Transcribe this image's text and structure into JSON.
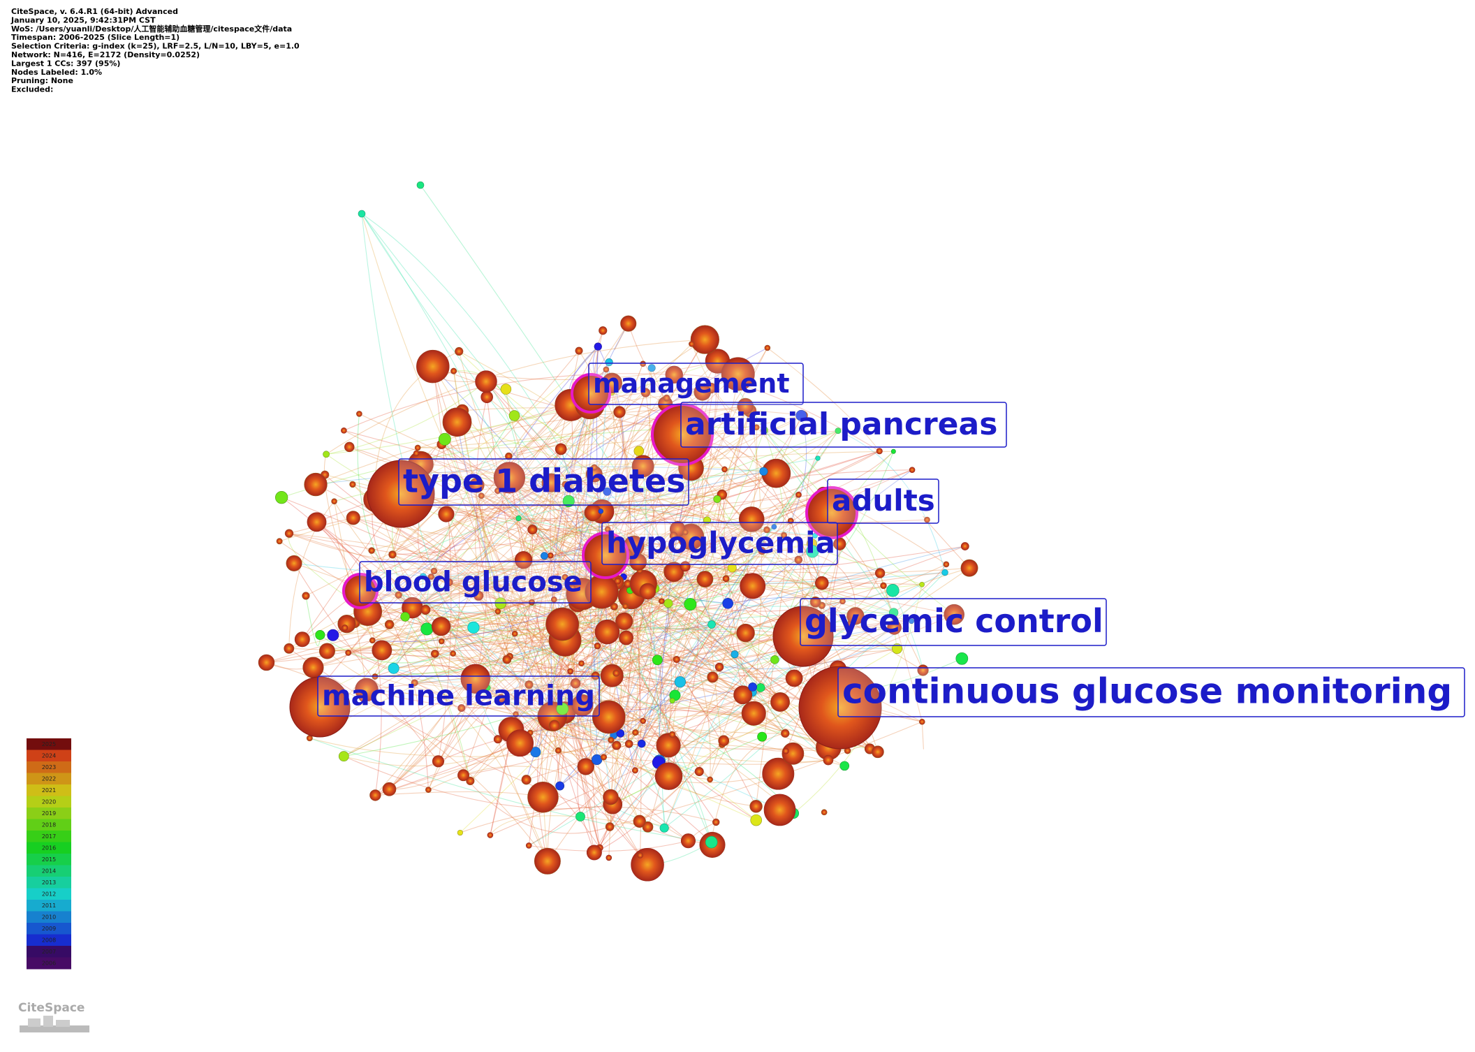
{
  "header": {
    "lines": [
      "CiteSpace, v. 6.4.R1 (64-bit) Advanced",
      "January 10, 2025, 9:42:31PM CST",
      "WoS: /Users/yuanli/Desktop/人工智能辅助血糖管理/citespace文件/data",
      "Timespan: 2006-2025 (Slice Length=1)",
      "Selection Criteria: g-index (k=25), LRF=2.5, L/N=10, LBY=5, e=1.0",
      "Network: N=416, E=2172 (Density=0.0252)",
      "Largest 1 CCs: 397 (95%)",
      "Nodes Labeled: 1.0%",
      "Pruning: None",
      "Excluded:"
    ]
  },
  "nodes": [
    {
      "label": "management"
    },
    {
      "label": "artificial pancreas"
    },
    {
      "label": "type 1 diabetes"
    },
    {
      "label": "adults"
    },
    {
      "label": "hypoglycemia"
    },
    {
      "label": "blood glucose"
    },
    {
      "label": "glycemic control"
    },
    {
      "label": "machine learning"
    },
    {
      "label": "continuous glucose monitoring"
    }
  ],
  "legend": {
    "years": [
      "2025",
      "2024",
      "2023",
      "2022",
      "2021",
      "2020",
      "2019",
      "2018",
      "2017",
      "2016",
      "2015",
      "2014",
      "2013",
      "2012",
      "2011",
      "2010",
      "2009",
      "2008",
      "2007",
      "2006"
    ]
  },
  "logo": {
    "text": "CiteSpace"
  }
}
